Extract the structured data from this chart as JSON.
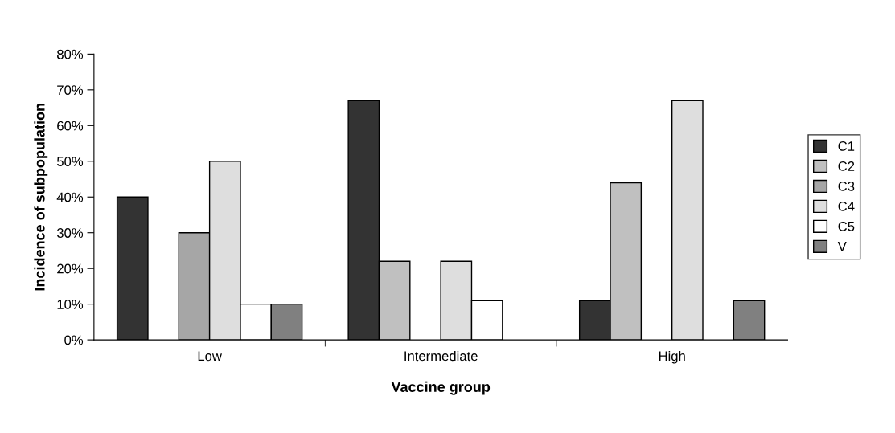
{
  "chart_data": {
    "type": "bar",
    "xlabel": "Vaccine group",
    "ylabel": "Incidence of subpopulation",
    "categories": [
      "Low",
      "Intermediate",
      "High"
    ],
    "series": [
      {
        "name": "C1",
        "color": "#333333",
        "values": [
          40,
          67,
          11
        ]
      },
      {
        "name": "C2",
        "color": "#c0c0c0",
        "values": [
          null,
          22,
          44
        ]
      },
      {
        "name": "C3",
        "color": "#a6a6a6",
        "values": [
          30,
          null,
          null
        ]
      },
      {
        "name": "C4",
        "color": "#dedede",
        "values": [
          50,
          22,
          67
        ]
      },
      {
        "name": "C5",
        "color": "#ffffff",
        "values": [
          10,
          11,
          null
        ]
      },
      {
        "name": "V",
        "color": "#808080",
        "values": [
          10,
          null,
          11
        ]
      }
    ],
    "ylim": [
      0,
      80
    ],
    "yticks": [
      {
        "value": 0,
        "label": "0%"
      },
      {
        "value": 10,
        "label": "10%"
      },
      {
        "value": 20,
        "label": "20%"
      },
      {
        "value": 30,
        "label": "30%"
      },
      {
        "value": 40,
        "label": "40%"
      },
      {
        "value": 50,
        "label": "50%"
      },
      {
        "value": 60,
        "label": "60%"
      },
      {
        "value": 70,
        "label": "70%"
      },
      {
        "value": 80,
        "label": "80%"
      }
    ],
    "grid": false,
    "legend": "right"
  }
}
